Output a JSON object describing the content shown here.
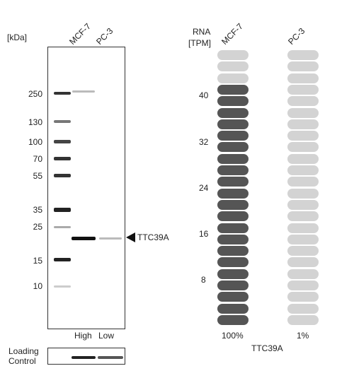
{
  "western_blot": {
    "unit_label": "[kDa]",
    "lanes": [
      "MCF-7",
      "PC-3"
    ],
    "markers": [
      "250",
      "130",
      "100",
      "70",
      "55",
      "35",
      "25",
      "15",
      "10"
    ],
    "target_label": "TTC39A",
    "lane_levels": [
      "High",
      "Low"
    ],
    "loading_control_label_line1": "Loading",
    "loading_control_label_line2": "Control"
  },
  "rna": {
    "header_line1": "RNA",
    "header_line2": "[TPM]",
    "columns": [
      {
        "name": "MCF-7",
        "percent": "100%",
        "filled_segments": 21,
        "total_segments": 24,
        "color": "#555555"
      },
      {
        "name": "PC-3",
        "percent": "1%",
        "filled_segments": 0,
        "total_segments": 24,
        "color": "#555555"
      }
    ],
    "empty_color": "#d3d3d3",
    "scale_ticks": [
      "40",
      "32",
      "24",
      "16",
      "8"
    ],
    "gene_label": "TTC39A"
  }
}
